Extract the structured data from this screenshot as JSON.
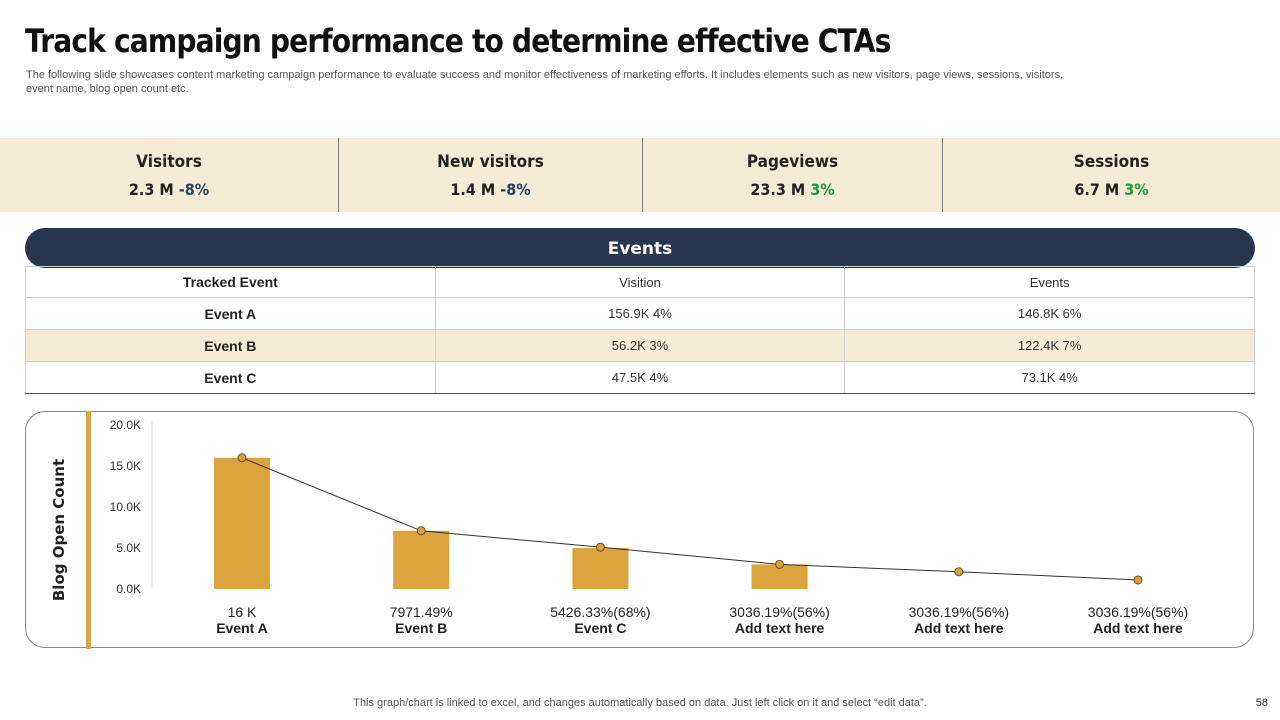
{
  "title": "Track campaign performance to determine effective CTAs",
  "subtitle": "The following slide showcases content marketing campaign performance to evaluate success and monitor effectiveness of marketing efforts. It includes elements such as new visitors, page views, sessions, visitors, event name, blog open count etc.",
  "kpis": [
    {
      "label": "Visitors",
      "value": "2.3 M",
      "change": "-8%",
      "trend": "down"
    },
    {
      "label": "New visitors",
      "value": "1.4 M",
      "change": "-8%",
      "trend": "down"
    },
    {
      "label": "Pageviews",
      "value": "23.3 M",
      "change": "3%",
      "trend": "up"
    },
    {
      "label": "Sessions",
      "value": "6.7 M",
      "change": "3%",
      "trend": "up"
    }
  ],
  "events": {
    "title": "Events",
    "headers": [
      "Tracked Event",
      "Visition",
      "Events"
    ],
    "rows": [
      [
        "Event A",
        "156.9K 4%",
        "146.8K 6%"
      ],
      [
        "Event B",
        "56.2K 3%",
        "122.4K 7%"
      ],
      [
        "Event C",
        "47.5K 4%",
        "73.1K 4%"
      ]
    ]
  },
  "colors": {
    "bar": "#dba43c",
    "marker": "#d9a03c",
    "navy": "#28374f",
    "band": "#f6ebd5"
  },
  "chart_data": {
    "type": "bar",
    "title": "",
    "ylabel": "Blog Open Count",
    "xlabel": "",
    "ylim": [
      0,
      20000
    ],
    "yticks": [
      0,
      5000,
      10000,
      15000,
      20000
    ],
    "ytick_labels": [
      "0.0K",
      "5.0K",
      "10.0K",
      "15.0K",
      "20.0K"
    ],
    "categories": [
      "Event A",
      "Event B",
      "Event C",
      "Add text here",
      "Add text here",
      "Add text here"
    ],
    "data_labels": [
      "16 K",
      "7971.49%",
      "5426.33%(68%)",
      "3036.19%(56%)",
      "3036.19%(56%)",
      "3036.19%(56%)"
    ],
    "series": [
      {
        "name": "Blog open count",
        "type": "bar",
        "values": [
          16000,
          7100,
          5000,
          3000,
          null,
          null
        ]
      },
      {
        "name": "Trend",
        "type": "line",
        "values": [
          16000,
          7100,
          5100,
          3000,
          2100,
          1100
        ]
      }
    ],
    "grid": false,
    "legend": "none"
  },
  "footer": "This graph/chart is linked to excel,  and changes automatically based on data. Just left click on it and select “edit data”.",
  "page_number": "58"
}
